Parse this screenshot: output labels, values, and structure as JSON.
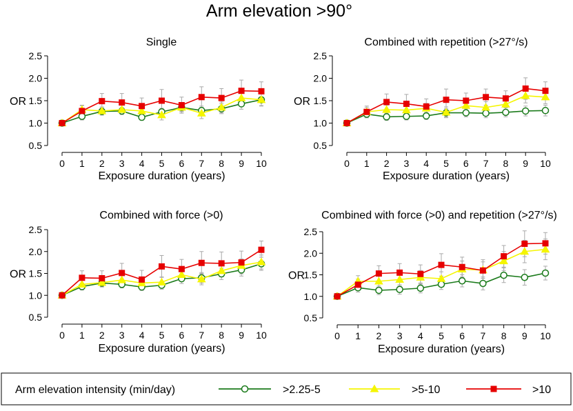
{
  "figure_title": "Arm elevation >90°",
  "legend": {
    "title": "Arm elevation intensity (min/day)",
    "entries": [
      {
        "label": ">2.25-5",
        "color": "#1a7a1a",
        "marker": "circle-open"
      },
      {
        "label": ">5-10",
        "color": "#f5f500",
        "marker": "triangle"
      },
      {
        "label": ">10",
        "color": "#e60000",
        "marker": "square"
      }
    ]
  },
  "chart_data": [
    {
      "type": "line",
      "title": "Single",
      "xlabel": "Exposure duration (years)",
      "ylabel": "OR",
      "x": [
        0,
        1,
        2,
        3,
        4,
        5,
        6,
        7,
        8,
        9,
        10
      ],
      "xticks": [
        "0",
        "1",
        "2",
        "3",
        "4",
        "5",
        "6",
        "7",
        "8",
        "9",
        "10"
      ],
      "yticks": [
        "0.5",
        "1.0",
        "1.5",
        "2.0",
        "2.5"
      ],
      "ylim": [
        0.5,
        2.5
      ],
      "series": [
        {
          "name": ">2.25-5",
          "color": "#1a7a1a",
          "marker": "circle-open",
          "values": [
            1.0,
            1.15,
            1.26,
            1.27,
            1.13,
            1.25,
            1.35,
            1.28,
            1.32,
            1.43,
            1.52
          ],
          "ci_low": [
            1.0,
            1.07,
            1.18,
            1.19,
            1.06,
            1.17,
            1.27,
            1.18,
            1.21,
            1.31,
            1.39
          ],
          "ci_high": [
            1.0,
            1.23,
            1.34,
            1.35,
            1.2,
            1.33,
            1.43,
            1.38,
            1.43,
            1.55,
            1.65
          ]
        },
        {
          "name": ">5-10",
          "color": "#f5f500",
          "marker": "triangle",
          "values": [
            1.0,
            1.3,
            1.27,
            1.3,
            1.27,
            1.18,
            1.35,
            1.22,
            1.35,
            1.56,
            1.52
          ],
          "ci_low": [
            1.0,
            1.2,
            1.18,
            1.2,
            1.17,
            1.07,
            1.25,
            1.1,
            1.23,
            1.42,
            1.38
          ],
          "ci_high": [
            1.0,
            1.4,
            1.36,
            1.4,
            1.37,
            1.29,
            1.45,
            1.34,
            1.47,
            1.7,
            1.66
          ]
        },
        {
          "name": ">10",
          "color": "#e60000",
          "marker": "square",
          "values": [
            1.0,
            1.27,
            1.49,
            1.46,
            1.38,
            1.5,
            1.4,
            1.58,
            1.56,
            1.72,
            1.71
          ],
          "ci_low": [
            1.0,
            1.15,
            1.32,
            1.26,
            1.2,
            1.25,
            1.22,
            1.35,
            1.35,
            1.48,
            1.5
          ],
          "ci_high": [
            1.0,
            1.39,
            1.66,
            1.66,
            1.56,
            1.75,
            1.58,
            1.81,
            1.77,
            1.96,
            1.92
          ]
        }
      ]
    },
    {
      "type": "line",
      "title": "Combined with repetition (>27°/s)",
      "xlabel": "Exposure duration (years)",
      "ylabel": "OR",
      "x": [
        0,
        1,
        2,
        3,
        4,
        5,
        6,
        7,
        8,
        9,
        10
      ],
      "xticks": [
        "0",
        "1",
        "2",
        "3",
        "4",
        "5",
        "6",
        "7",
        "8",
        "9",
        "10"
      ],
      "yticks": [
        "0.5",
        "1.0",
        "1.5",
        "2.0",
        "2.5"
      ],
      "ylim": [
        0.5,
        2.5
      ],
      "series": [
        {
          "name": ">2.25-5",
          "color": "#1a7a1a",
          "marker": "circle-open",
          "values": [
            1.0,
            1.2,
            1.14,
            1.15,
            1.16,
            1.23,
            1.23,
            1.22,
            1.24,
            1.27,
            1.28
          ],
          "ci_low": [
            1.0,
            1.12,
            1.06,
            1.07,
            1.08,
            1.14,
            1.14,
            1.12,
            1.14,
            1.16,
            1.16
          ],
          "ci_high": [
            1.0,
            1.28,
            1.22,
            1.23,
            1.24,
            1.32,
            1.32,
            1.32,
            1.34,
            1.38,
            1.4
          ]
        },
        {
          "name": ">5-10",
          "color": "#f5f500",
          "marker": "triangle",
          "values": [
            1.0,
            1.25,
            1.3,
            1.29,
            1.33,
            1.24,
            1.39,
            1.35,
            1.42,
            1.61,
            1.58
          ],
          "ci_low": [
            1.0,
            1.15,
            1.2,
            1.18,
            1.22,
            1.12,
            1.27,
            1.22,
            1.3,
            1.45,
            1.43
          ],
          "ci_high": [
            1.0,
            1.35,
            1.4,
            1.4,
            1.44,
            1.36,
            1.51,
            1.48,
            1.54,
            1.77,
            1.73
          ]
        },
        {
          "name": ">10",
          "color": "#e60000",
          "marker": "square",
          "values": [
            1.0,
            1.25,
            1.47,
            1.43,
            1.37,
            1.52,
            1.5,
            1.58,
            1.55,
            1.77,
            1.72
          ],
          "ci_low": [
            1.0,
            1.12,
            1.29,
            1.22,
            1.2,
            1.28,
            1.33,
            1.4,
            1.38,
            1.53,
            1.52
          ],
          "ci_high": [
            1.0,
            1.38,
            1.65,
            1.64,
            1.54,
            1.76,
            1.67,
            1.76,
            1.72,
            2.01,
            1.92
          ]
        }
      ]
    },
    {
      "type": "line",
      "title": "Combined with force (>0)",
      "xlabel": "Exposure duration (years)",
      "ylabel": "OR",
      "x": [
        0,
        1,
        2,
        3,
        4,
        5,
        6,
        7,
        8,
        9,
        10
      ],
      "xticks": [
        "0",
        "1",
        "2",
        "3",
        "4",
        "5",
        "6",
        "7",
        "8",
        "9",
        "10"
      ],
      "yticks": [
        "0.5",
        "1.0",
        "1.5",
        "2.0",
        "2.5"
      ],
      "ylim": [
        0.5,
        2.5
      ],
      "series": [
        {
          "name": ">2.25-5",
          "color": "#1a7a1a",
          "marker": "circle-open",
          "values": [
            1.0,
            1.2,
            1.28,
            1.25,
            1.19,
            1.23,
            1.38,
            1.4,
            1.49,
            1.58,
            1.72
          ],
          "ci_low": [
            1.0,
            1.12,
            1.2,
            1.17,
            1.11,
            1.14,
            1.27,
            1.28,
            1.36,
            1.44,
            1.57
          ],
          "ci_high": [
            1.0,
            1.28,
            1.36,
            1.33,
            1.27,
            1.32,
            1.49,
            1.52,
            1.62,
            1.72,
            1.87
          ]
        },
        {
          "name": ">5-10",
          "color": "#f5f500",
          "marker": "triangle",
          "values": [
            1.0,
            1.25,
            1.29,
            1.35,
            1.28,
            1.3,
            1.47,
            1.37,
            1.56,
            1.68,
            1.76
          ],
          "ci_low": [
            1.0,
            1.15,
            1.19,
            1.24,
            1.17,
            1.18,
            1.34,
            1.24,
            1.42,
            1.53,
            1.6
          ],
          "ci_high": [
            1.0,
            1.35,
            1.39,
            1.46,
            1.39,
            1.42,
            1.6,
            1.5,
            1.7,
            1.83,
            1.92
          ]
        },
        {
          "name": ">10",
          "color": "#e60000",
          "marker": "square",
          "values": [
            1.0,
            1.4,
            1.39,
            1.51,
            1.36,
            1.66,
            1.6,
            1.74,
            1.73,
            1.75,
            2.04
          ],
          "ci_low": [
            1.0,
            1.24,
            1.22,
            1.29,
            1.15,
            1.41,
            1.38,
            1.48,
            1.47,
            1.49,
            1.76
          ],
          "ci_high": [
            1.0,
            1.56,
            1.56,
            1.73,
            1.57,
            1.91,
            1.82,
            2.0,
            1.99,
            2.01,
            2.24
          ]
        }
      ]
    },
    {
      "type": "line",
      "title": "Combined with force (>0) and repetition (>27°/s)",
      "xlabel": "Exposure duration (years)",
      "ylabel": "OR",
      "x": [
        0,
        1,
        2,
        3,
        4,
        5,
        6,
        7,
        8,
        9,
        10
      ],
      "xticks": [
        "0",
        "1",
        "2",
        "3",
        "4",
        "5",
        "6",
        "7",
        "8",
        "9",
        "10"
      ],
      "yticks": [
        "0.5",
        "1.0",
        "1.5",
        "2.0",
        "2.5"
      ],
      "ylim": [
        0.5,
        2.5
      ],
      "series": [
        {
          "name": ">2.25-5",
          "color": "#1a7a1a",
          "marker": "circle-open",
          "values": [
            1.0,
            1.2,
            1.14,
            1.16,
            1.19,
            1.28,
            1.36,
            1.3,
            1.49,
            1.44,
            1.54
          ],
          "ci_low": [
            1.0,
            1.1,
            1.04,
            1.05,
            1.08,
            1.16,
            1.22,
            1.15,
            1.32,
            1.26,
            1.38
          ],
          "ci_high": [
            1.0,
            1.3,
            1.24,
            1.27,
            1.3,
            1.4,
            1.5,
            1.45,
            1.66,
            1.62,
            1.7
          ]
        },
        {
          "name": ">5-10",
          "color": "#f5f500",
          "marker": "triangle",
          "values": [
            1.0,
            1.35,
            1.35,
            1.39,
            1.44,
            1.41,
            1.63,
            1.61,
            1.82,
            2.04,
            2.09
          ],
          "ci_low": [
            1.0,
            1.22,
            1.21,
            1.24,
            1.28,
            1.25,
            1.44,
            1.42,
            1.6,
            1.78,
            1.85
          ],
          "ci_high": [
            1.0,
            1.48,
            1.49,
            1.54,
            1.6,
            1.57,
            1.82,
            1.8,
            2.04,
            2.3,
            2.33
          ]
        },
        {
          "name": ">10",
          "color": "#e60000",
          "marker": "square",
          "values": [
            1.0,
            1.27,
            1.53,
            1.55,
            1.52,
            1.73,
            1.68,
            1.6,
            1.93,
            2.22,
            2.23
          ],
          "ci_low": [
            1.0,
            1.14,
            1.35,
            1.34,
            1.31,
            1.47,
            1.45,
            1.35,
            1.68,
            1.92,
            1.98
          ],
          "ci_high": [
            1.0,
            1.4,
            1.71,
            1.76,
            1.73,
            1.99,
            1.91,
            1.85,
            2.18,
            2.52,
            2.48
          ]
        }
      ]
    }
  ]
}
